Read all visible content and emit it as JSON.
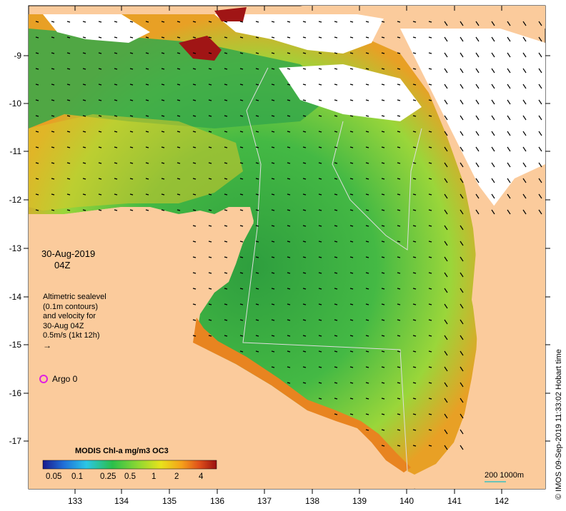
{
  "colorbar": {
    "title": "MODIS Chl-a mg/m3 OC3",
    "ticks": [
      "0.05",
      "0.1",
      "0.25",
      "0.5",
      "1",
      "2",
      "4"
    ],
    "gradient": [
      "#1a1a8c",
      "#1f6fd8",
      "#2bc6e6",
      "#2bbf4a",
      "#8fd832",
      "#e8e21c",
      "#f5a01a",
      "#e0501a",
      "#9a1010"
    ]
  },
  "map": {
    "date": "30-Aug-2019",
    "time": "04Z",
    "legend_lines": [
      "Altimetric sealevel",
      "(0.1m contours)",
      "and velocity for",
      "30-Aug 04Z",
      "0.5m/s (1kt 12h)"
    ],
    "argo_label": "Argo 0",
    "scale_label": "200  1000m",
    "credit": "© IMOS 09-Sep-2019 11:33:02 Hobart time",
    "lon_ticks": [
      "133",
      "134",
      "135",
      "136",
      "137",
      "138",
      "139",
      "140",
      "141",
      "142"
    ],
    "lat_ticks": [
      "-9",
      "-10",
      "-11",
      "-12",
      "-13",
      "-14",
      "-15",
      "-16",
      "-17"
    ],
    "colors": {
      "land": "#fbcb9c",
      "ocean_green": "#3fb63f",
      "argo": "#e020e0",
      "scale_bar": "#3ac0c0"
    }
  }
}
